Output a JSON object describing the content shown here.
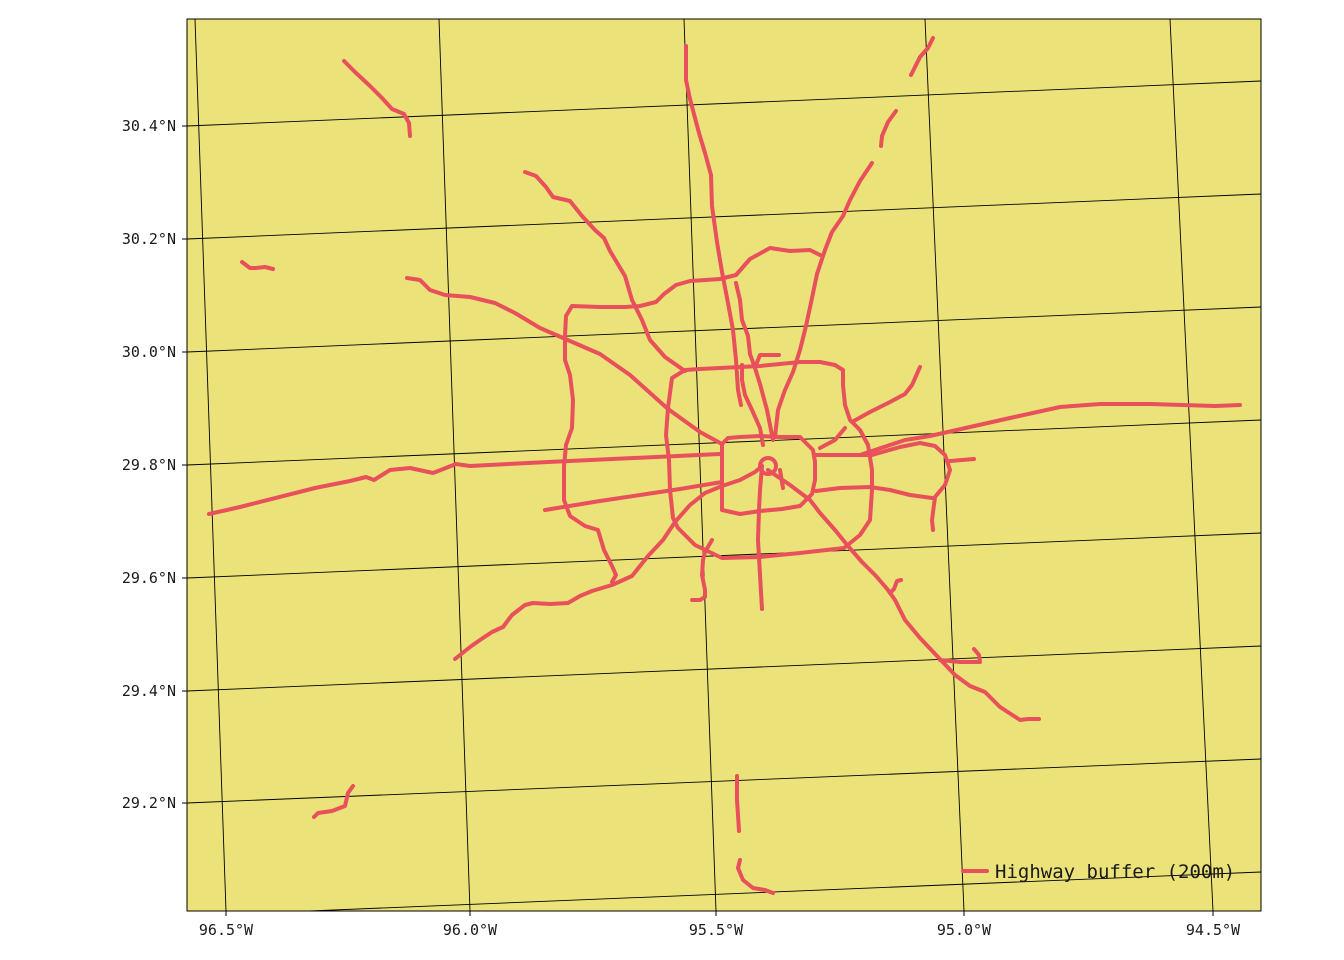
{
  "map": {
    "land_color": "#ebe27a",
    "highway_color": "#e8505b",
    "graticule_color": "#000000",
    "lon_ticks": [
      {
        "value": -96.5,
        "label": "96.5°W"
      },
      {
        "value": -96.0,
        "label": "96.0°W"
      },
      {
        "value": -95.5,
        "label": "95.5°W"
      },
      {
        "value": -95.0,
        "label": "95.0°W"
      },
      {
        "value": -94.5,
        "label": "94.5°W"
      }
    ],
    "lat_ticks": [
      {
        "value": 30.4,
        "label": "30.4°N"
      },
      {
        "value": 30.2,
        "label": "30.2°N"
      },
      {
        "value": 30.0,
        "label": "30.0°N"
      },
      {
        "value": 29.8,
        "label": "29.8°N"
      },
      {
        "value": 29.6,
        "label": "29.6°N"
      },
      {
        "value": 29.4,
        "label": "29.4°N"
      },
      {
        "value": 29.2,
        "label": "29.2°N"
      }
    ],
    "legend": {
      "label": "Highway buffer (200m)",
      "placement": "bottom-right"
    }
  }
}
